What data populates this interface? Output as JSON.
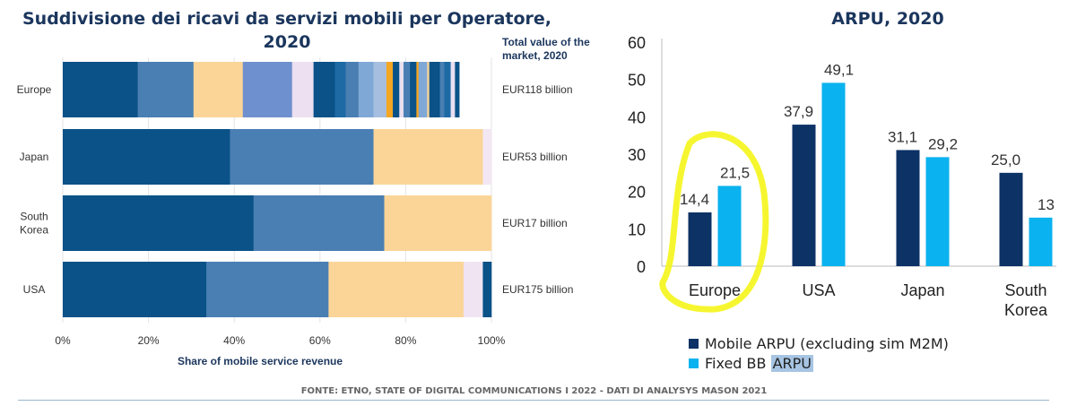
{
  "footer": "FONTE: ETNO, STATE OF DIGITAL COMMUNICATIONS I 2022 - DATI DI ANALYSYS MASON 2021",
  "chart_data": [
    {
      "type": "bar",
      "orientation": "horizontal",
      "stacked": true,
      "title": "Suddivisione dei ricavi da servizi mobili per Operatore, 2020",
      "xlabel": "Share of mobile service revenue",
      "xlim": [
        0,
        100
      ],
      "x_ticks": [
        "0%",
        "20%",
        "40%",
        "60%",
        "80%",
        "100%"
      ],
      "grid": true,
      "right_header": "Total value of the market, 2020",
      "categories": [
        "Europe",
        "Japan",
        "South Korea",
        "USA"
      ],
      "category_labels": [
        [
          "Europe"
        ],
        [
          "Japan"
        ],
        [
          "South",
          "Korea"
        ],
        [
          "USA"
        ]
      ],
      "totals": [
        "EUR118 billion",
        "EUR53 billion",
        "EUR17 billion",
        "EUR175 billion"
      ],
      "segments": [
        [
          17.5,
          13,
          11.5,
          11.5,
          5,
          5,
          2.5,
          3,
          3.5,
          3,
          1.5,
          1.5,
          1,
          1.5,
          1.5,
          0.5,
          2,
          0.5,
          2.5,
          1,
          1.5,
          1,
          1
        ],
        [
          39,
          33.5,
          25.5,
          2
        ],
        [
          44.5,
          30.5,
          25
        ],
        [
          33.5,
          28.5,
          31.5,
          4.5,
          2
        ]
      ],
      "segment_colors": [
        [
          "#0a5288",
          "#4a7fb3",
          "#fbd598",
          "#6f90ce",
          "#ede0f0",
          "#0a5288",
          "#1d6aa5",
          "#4a7fb3",
          "#7fa8d6",
          "#a6bfe0",
          "#f5a623",
          "#0a5288",
          "#e8dff0",
          "#4a7fb3",
          "#0a5288",
          "#f5a623",
          "#7fa8d6",
          "#fbd598",
          "#0a5288",
          "#4a7fb3",
          "#1d6aa5",
          "#e8dff0",
          "#0a5288"
        ],
        [
          "#0a5288",
          "#4a7fb3",
          "#fbd598",
          "#f3e7f3"
        ],
        [
          "#0a5288",
          "#4a7fb3",
          "#fbd598"
        ],
        [
          "#0a5288",
          "#4a7fb3",
          "#fbd598",
          "#f0e4f2",
          "#0a5288"
        ]
      ]
    },
    {
      "type": "bar",
      "title": "ARPU, 2020",
      "categories": [
        "Europe",
        "USA",
        "Japan",
        "South Korea"
      ],
      "category_labels": [
        [
          "Europe"
        ],
        [
          "USA"
        ],
        [
          "Japan"
        ],
        [
          "South",
          "Korea"
        ]
      ],
      "ylim": [
        0,
        60
      ],
      "y_ticks": [
        0,
        10,
        20,
        30,
        40,
        50,
        60
      ],
      "series": [
        {
          "name": "Mobile ARPU (excluding sim M2M)",
          "color": "#0c3266",
          "values": [
            14.4,
            37.9,
            31.1,
            25.0
          ],
          "labels": [
            "14,4",
            "37,9",
            "31,1",
            "25,0"
          ]
        },
        {
          "name": "Fixed BB ARPU",
          "color": "#0ab2ef",
          "values": [
            21.5,
            49.1,
            29.2,
            13
          ],
          "labels": [
            "21,5",
            "49,1",
            "29,2",
            "13"
          ]
        }
      ],
      "annotation": "yellow hand-drawn circle around Europe",
      "annotation_color": "#f5f51a"
    }
  ]
}
